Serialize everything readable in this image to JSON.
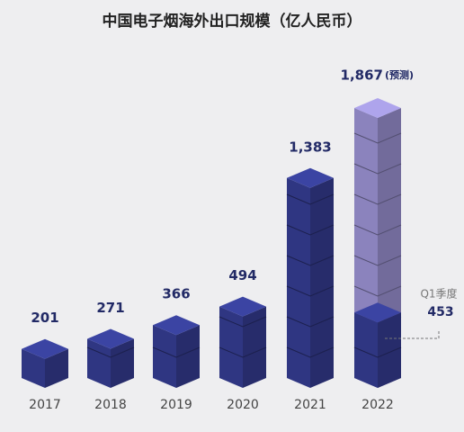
{
  "chart_data": {
    "type": "bar",
    "title": "中国电子烟海外出口规模（亿人民币）",
    "categories": [
      "2017",
      "2018",
      "2019",
      "2020",
      "2021",
      "2022"
    ],
    "values": [
      201,
      271,
      366,
      494,
      1383,
      1867
    ],
    "value_labels": [
      "201",
      "271",
      "366",
      "494",
      "1,383",
      "1,867"
    ],
    "forecast_note": "(预测)",
    "color": "#2f3682",
    "forecast_color": "#8b83bd",
    "q1_label": "Q1季度",
    "q1_value": 453
  }
}
